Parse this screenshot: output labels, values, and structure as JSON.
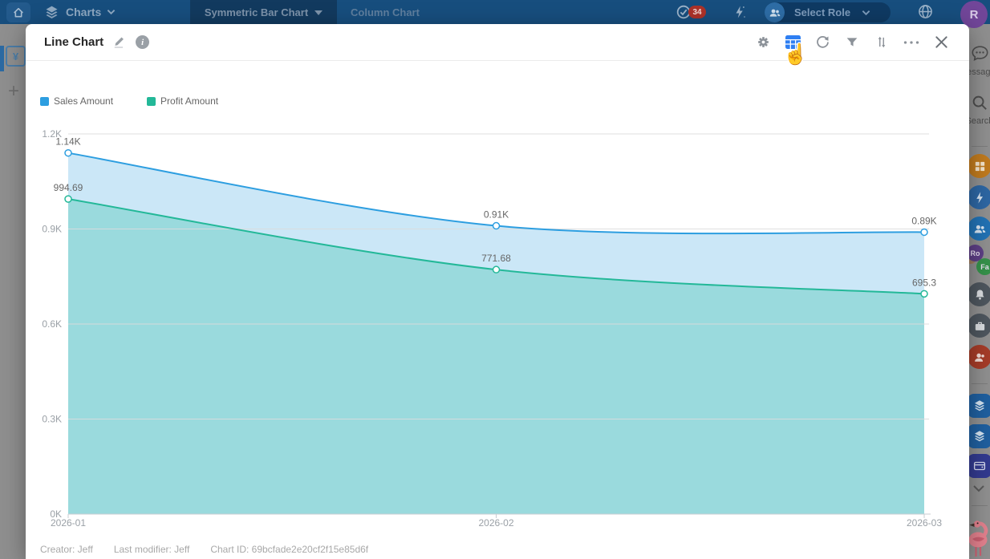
{
  "topbar": {
    "brand": "Charts",
    "tabs": [
      "Symmetric Bar Chart",
      "Column Chart"
    ],
    "notification_count": "34",
    "role_selector_label": "Select Role",
    "avatar_initial": "R",
    "icons": [
      "home-icon",
      "layers-icon",
      "chevron-down-icon",
      "check-circle-icon",
      "bolt-icon",
      "people-icon",
      "globe-icon"
    ]
  },
  "left_rail": {
    "currency_symbol": "¥",
    "add_symbol": "+"
  },
  "modal": {
    "title": "Line Chart",
    "toolbar_icons": [
      "edit-pencil-icon",
      "info-icon",
      "gear-icon",
      "table-view-icon",
      "refresh-icon",
      "filter-icon",
      "sort-icon",
      "more-icon",
      "close-icon"
    ],
    "active_tool": "table-view",
    "footer": {
      "creator": "Creator: Jeff",
      "last_modifier": "Last modifier: Jeff",
      "chart_id": "Chart ID: 69bcfade2e20cf2f15e85d6f"
    }
  },
  "dock": {
    "messages_label": "Messages",
    "search_label": "Search",
    "badge_1": "Ro",
    "badge_2": "Fa",
    "icons": [
      "message-icon",
      "search-icon",
      "grid-icon",
      "bolt-icon",
      "people-icon",
      "bell-icon",
      "briefcase-icon",
      "people-icon",
      "layers-icon",
      "layers-icon",
      "wallet-icon",
      "chevron-down-icon",
      "flamingo-mascot"
    ]
  },
  "colors": {
    "accent_blue": "#2F7FF2",
    "series_blue": "#2D9EE0",
    "series_teal": "#23B898",
    "badge_red": "#AD3229",
    "avatar_purple": "#714699"
  },
  "chart_data": {
    "type": "area",
    "title": "Line Chart",
    "x": [
      "2026-01",
      "2026-02",
      "2026-03"
    ],
    "series": [
      {
        "name": "Sales Amount",
        "color": "#2D9EE0",
        "fill": "#CBE7F7",
        "values": [
          1140,
          910,
          890
        ],
        "point_labels": [
          "1.14K",
          "0.91K",
          "0.89K"
        ]
      },
      {
        "name": "Profit Amount",
        "color": "#23B898",
        "fill": "#9ADADD",
        "values": [
          994.69,
          771.68,
          695.3
        ],
        "point_labels": [
          "994.69",
          "771.68",
          "695.3"
        ]
      }
    ],
    "ylim": [
      0,
      1200
    ],
    "yticks": [
      {
        "label": "1.2K",
        "value": 1200
      },
      {
        "label": "0.9K",
        "value": 900
      },
      {
        "label": "0.6K",
        "value": 600
      },
      {
        "label": "0.3K",
        "value": 300
      },
      {
        "label": "0K",
        "value": 0
      }
    ],
    "grid": true,
    "smooth": true,
    "legend_position": "top-left"
  }
}
